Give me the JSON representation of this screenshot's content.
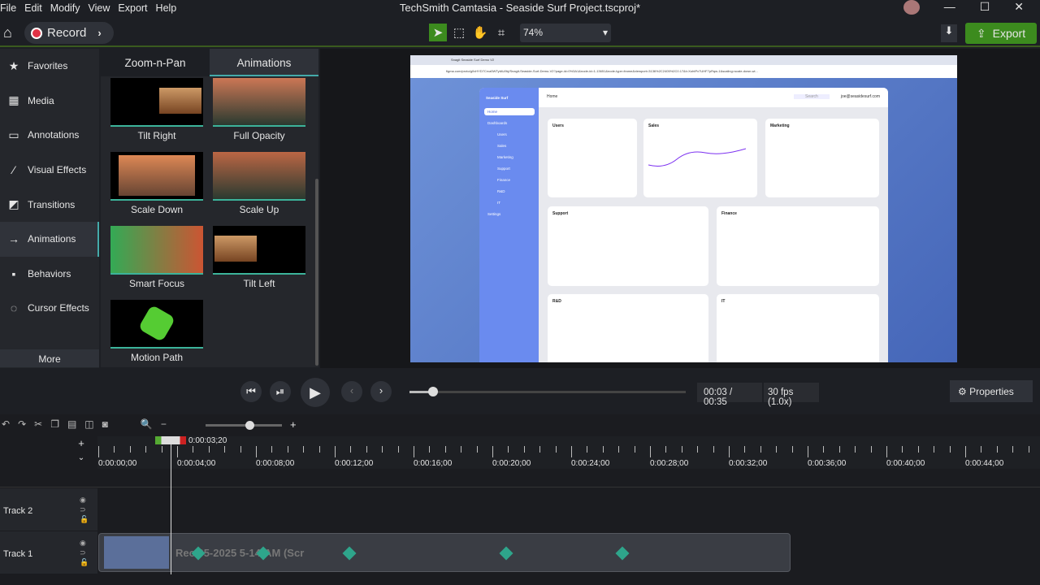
{
  "menu": [
    "File",
    "Edit",
    "Modify",
    "View",
    "Export",
    "Help"
  ],
  "window_title": "TechSmith Camtasia - Seaside Surf Project.tscproj*",
  "toolbar": {
    "record": "Record",
    "zoom": "74%",
    "export": "Export"
  },
  "sidebar": {
    "items": [
      "Favorites",
      "Media",
      "Annotations",
      "Visual Effects",
      "Transitions",
      "Animations",
      "Behaviors",
      "Cursor Effects"
    ],
    "more": "More"
  },
  "panel": {
    "tabs": [
      "Zoom-n-Pan",
      "Animations"
    ],
    "tiles": [
      "Tilt Right",
      "Full Opacity",
      "Scale Down",
      "Scale Up",
      "Smart Focus",
      "Tilt Left",
      "Motion Path"
    ]
  },
  "browser": {
    "tab": "Snagit Seaside Surf Demo V2",
    "url": "figma.com/proto/g0vHYD7Crva5WTytAU9kj/Snagit-Seaside-Surf-Demo-V2?page-id=0%3A1&node-id=1-13651&node-type=frame&viewport=3136%2C2405%2C0.17&t=XohtPx7UHF7pRqw-1&scaling=scale-down-wi..."
  },
  "app": {
    "brand": "Seaside Surf",
    "crumb": "Home",
    "search": "Search",
    "user": "joe@seasidesurf.com",
    "nav": [
      "Home",
      "Dashboards",
      "Users",
      "Sales",
      "Marketing",
      "Support",
      "Finance",
      "R&D",
      "IT",
      "Settings"
    ],
    "cards": [
      "Users",
      "Sales",
      "Marketing",
      "Support",
      "Finance",
      "R&D",
      "IT"
    ]
  },
  "player": {
    "time": "00:03",
    "duration": "00:35",
    "fps": "30 fps (1.0x)",
    "properties": "Properties",
    "progress": 0.086
  },
  "timeline": {
    "playhead": "0:00:03;20",
    "ticks": [
      "0:00:00;00",
      "0:00:04;00",
      "0:00:08;00",
      "0:00:12;00",
      "0:00:16;00",
      "0:00:20;00",
      "0:00:24;00",
      "0:00:28;00",
      "0:00:32;00",
      "0:00:36;00",
      "0:00:40;00",
      "0:00:44;00"
    ],
    "tracks": [
      "Track 2",
      "Track 1"
    ],
    "clip": "Rec 05-2025 5-14-AM (Scr"
  }
}
